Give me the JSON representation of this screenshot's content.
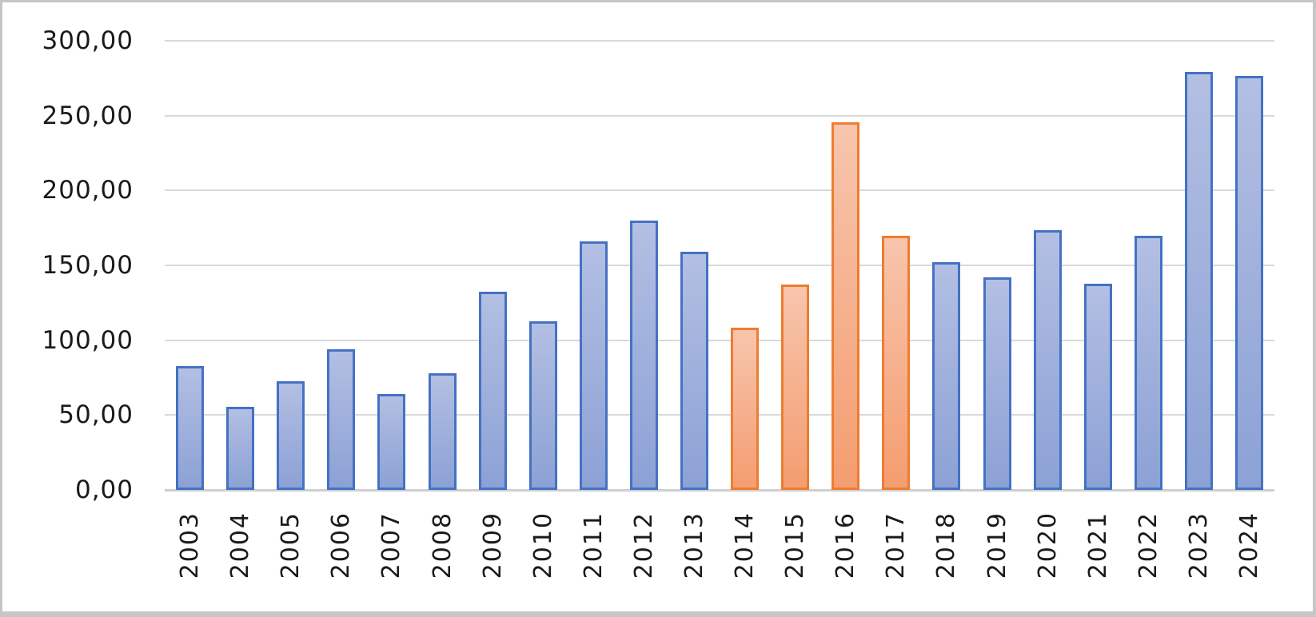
{
  "chart_data": {
    "type": "bar",
    "title": "",
    "xlabel": "",
    "ylabel": "",
    "categories": [
      "2003",
      "2004",
      "2005",
      "2006",
      "2007",
      "2008",
      "2009",
      "2010",
      "2011",
      "2012",
      "2013",
      "2014",
      "2015",
      "2016",
      "2017",
      "2018",
      "2019",
      "2020",
      "2021",
      "2022",
      "2023",
      "2024"
    ],
    "values": [
      83,
      55.5,
      72.5,
      94,
      64,
      78,
      132.5,
      112.5,
      166,
      180,
      159,
      108.5,
      137,
      245.5,
      169.5,
      152,
      142,
      173.5,
      137.5,
      170,
      279,
      276.5
    ],
    "highlighted_categories": [
      "2014",
      "2015",
      "2016",
      "2017"
    ],
    "y_tick_labels": [
      "300,00",
      "250,00",
      "200,00",
      "150,00",
      "100,00",
      "50,00",
      "0,00"
    ],
    "y_ticks": [
      300,
      250,
      200,
      150,
      100,
      50,
      0
    ],
    "ylim": [
      0,
      300
    ],
    "grid": "horizontal",
    "legend_position": "none",
    "x_label_rotation_deg": -90,
    "decimal_separator": ",",
    "colors": {
      "default_fill_top": "#b3bfe3",
      "default_fill_bottom": "#8ca1d5",
      "default_border": "#4472c4",
      "highlight_fill_top": "#f7c5ad",
      "highlight_fill_bottom": "#f49d70",
      "highlight_border": "#ed7d31",
      "gridline": "#d9d9d9",
      "baseline": "#cfcfcf",
      "axis_text": "#1a1a1a",
      "frame_border": "#c6c6c6"
    }
  }
}
